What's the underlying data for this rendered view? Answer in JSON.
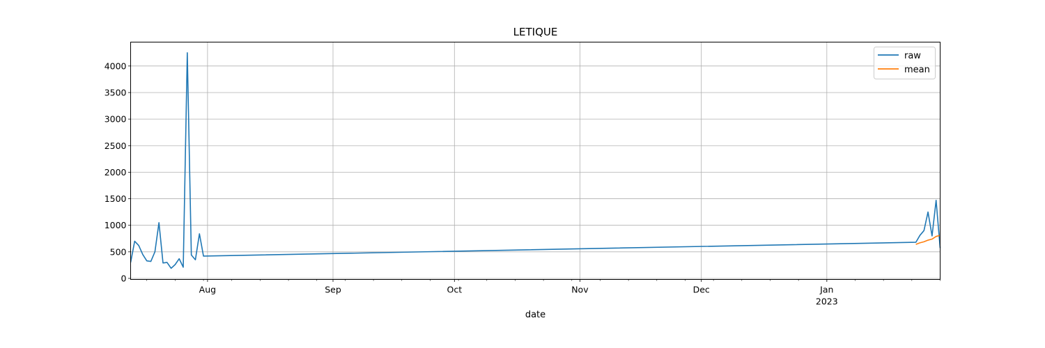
{
  "chart_data": {
    "type": "line",
    "title": "LETIQUE",
    "xlabel": "date",
    "ylabel": "",
    "ylim": [
      -20,
      4450
    ],
    "xlim": [
      "2022-07-13",
      "2023-01-29"
    ],
    "grid": true,
    "legend": {
      "placement": "top-right",
      "entries": [
        "raw",
        "mean"
      ]
    },
    "y_ticks": [
      0,
      500,
      1000,
      1500,
      2000,
      2500,
      3000,
      3500,
      4000
    ],
    "x_ticks": [
      {
        "date": "2022-08-01",
        "label": "Aug",
        "sublabel": ""
      },
      {
        "date": "2022-09-01",
        "label": "Sep",
        "sublabel": ""
      },
      {
        "date": "2022-10-01",
        "label": "Oct",
        "sublabel": ""
      },
      {
        "date": "2022-11-01",
        "label": "Nov",
        "sublabel": ""
      },
      {
        "date": "2022-12-01",
        "label": "Dec",
        "sublabel": ""
      },
      {
        "date": "2023-01-01",
        "label": "Jan",
        "sublabel": "2023"
      }
    ],
    "series": [
      {
        "name": "raw",
        "color": "#1f77b4",
        "x": [
          "2022-07-13",
          "2022-07-14",
          "2022-07-15",
          "2022-07-16",
          "2022-07-17",
          "2022-07-18",
          "2022-07-19",
          "2022-07-20",
          "2022-07-21",
          "2022-07-22",
          "2022-07-23",
          "2022-07-24",
          "2022-07-25",
          "2022-07-26",
          "2022-07-27",
          "2022-07-28",
          "2022-07-29",
          "2022-07-30",
          "2022-07-31",
          "2023-01-23",
          "2023-01-24",
          "2023-01-25",
          "2023-01-26",
          "2023-01-27",
          "2023-01-28",
          "2023-01-29"
        ],
        "values": [
          300,
          700,
          620,
          450,
          330,
          320,
          500,
          1050,
          290,
          300,
          190,
          260,
          370,
          210,
          4250,
          440,
          350,
          840,
          420,
          680,
          810,
          900,
          1250,
          800,
          1470,
          570
        ]
      },
      {
        "name": "mean",
        "color": "#ff7f0e",
        "x": [
          "2023-01-23",
          "2023-01-24",
          "2023-01-25",
          "2023-01-26",
          "2023-01-27",
          "2023-01-28",
          "2023-01-29"
        ],
        "values": [
          640,
          670,
          690,
          720,
          740,
          790,
          810
        ]
      }
    ]
  }
}
